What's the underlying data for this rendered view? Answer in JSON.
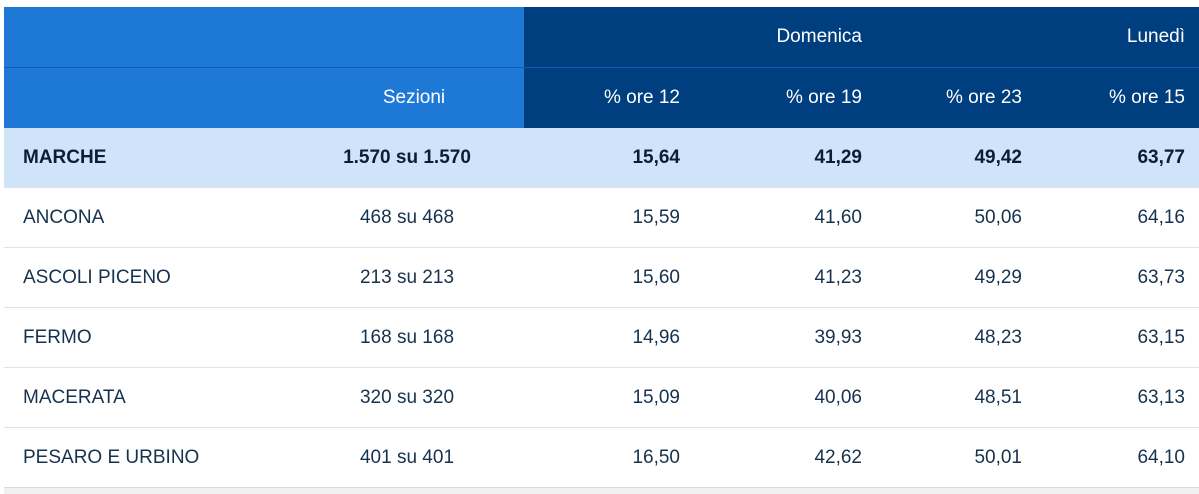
{
  "header": {
    "group_sunday": "Domenica",
    "group_monday": "Lunedì",
    "col_sections": "Sezioni",
    "col_ore12": "% ore 12",
    "col_ore19": "% ore 19",
    "col_ore23": "% ore 23",
    "col_ore15": "% ore 15"
  },
  "total": {
    "name": "MARCHE",
    "sections": "1.570 su 1.570",
    "ore12": "15,64",
    "ore19": "41,29",
    "ore23": "49,42",
    "ore15": "63,77"
  },
  "rows": [
    {
      "name": "ANCONA",
      "sections": "468 su 468",
      "ore12": "15,59",
      "ore19": "41,60",
      "ore23": "50,06",
      "ore15": "64,16"
    },
    {
      "name": "ASCOLI PICENO",
      "sections": "213 su 213",
      "ore12": "15,60",
      "ore19": "41,23",
      "ore23": "49,29",
      "ore15": "63,73"
    },
    {
      "name": "FERMO",
      "sections": "168 su 168",
      "ore12": "14,96",
      "ore19": "39,93",
      "ore23": "48,23",
      "ore15": "63,15"
    },
    {
      "name": "MACERATA",
      "sections": "320 su 320",
      "ore12": "15,09",
      "ore19": "40,06",
      "ore23": "48,51",
      "ore15": "63,13"
    },
    {
      "name": "PESARO E URBINO",
      "sections": "401 su 401",
      "ore12": "16,50",
      "ore19": "42,62",
      "ore23": "50,01",
      "ore15": "64,10"
    }
  ],
  "colors": {
    "header_light": "#1e79d6",
    "header_dark": "#003f7f",
    "total_row": "#cfe4f9"
  }
}
